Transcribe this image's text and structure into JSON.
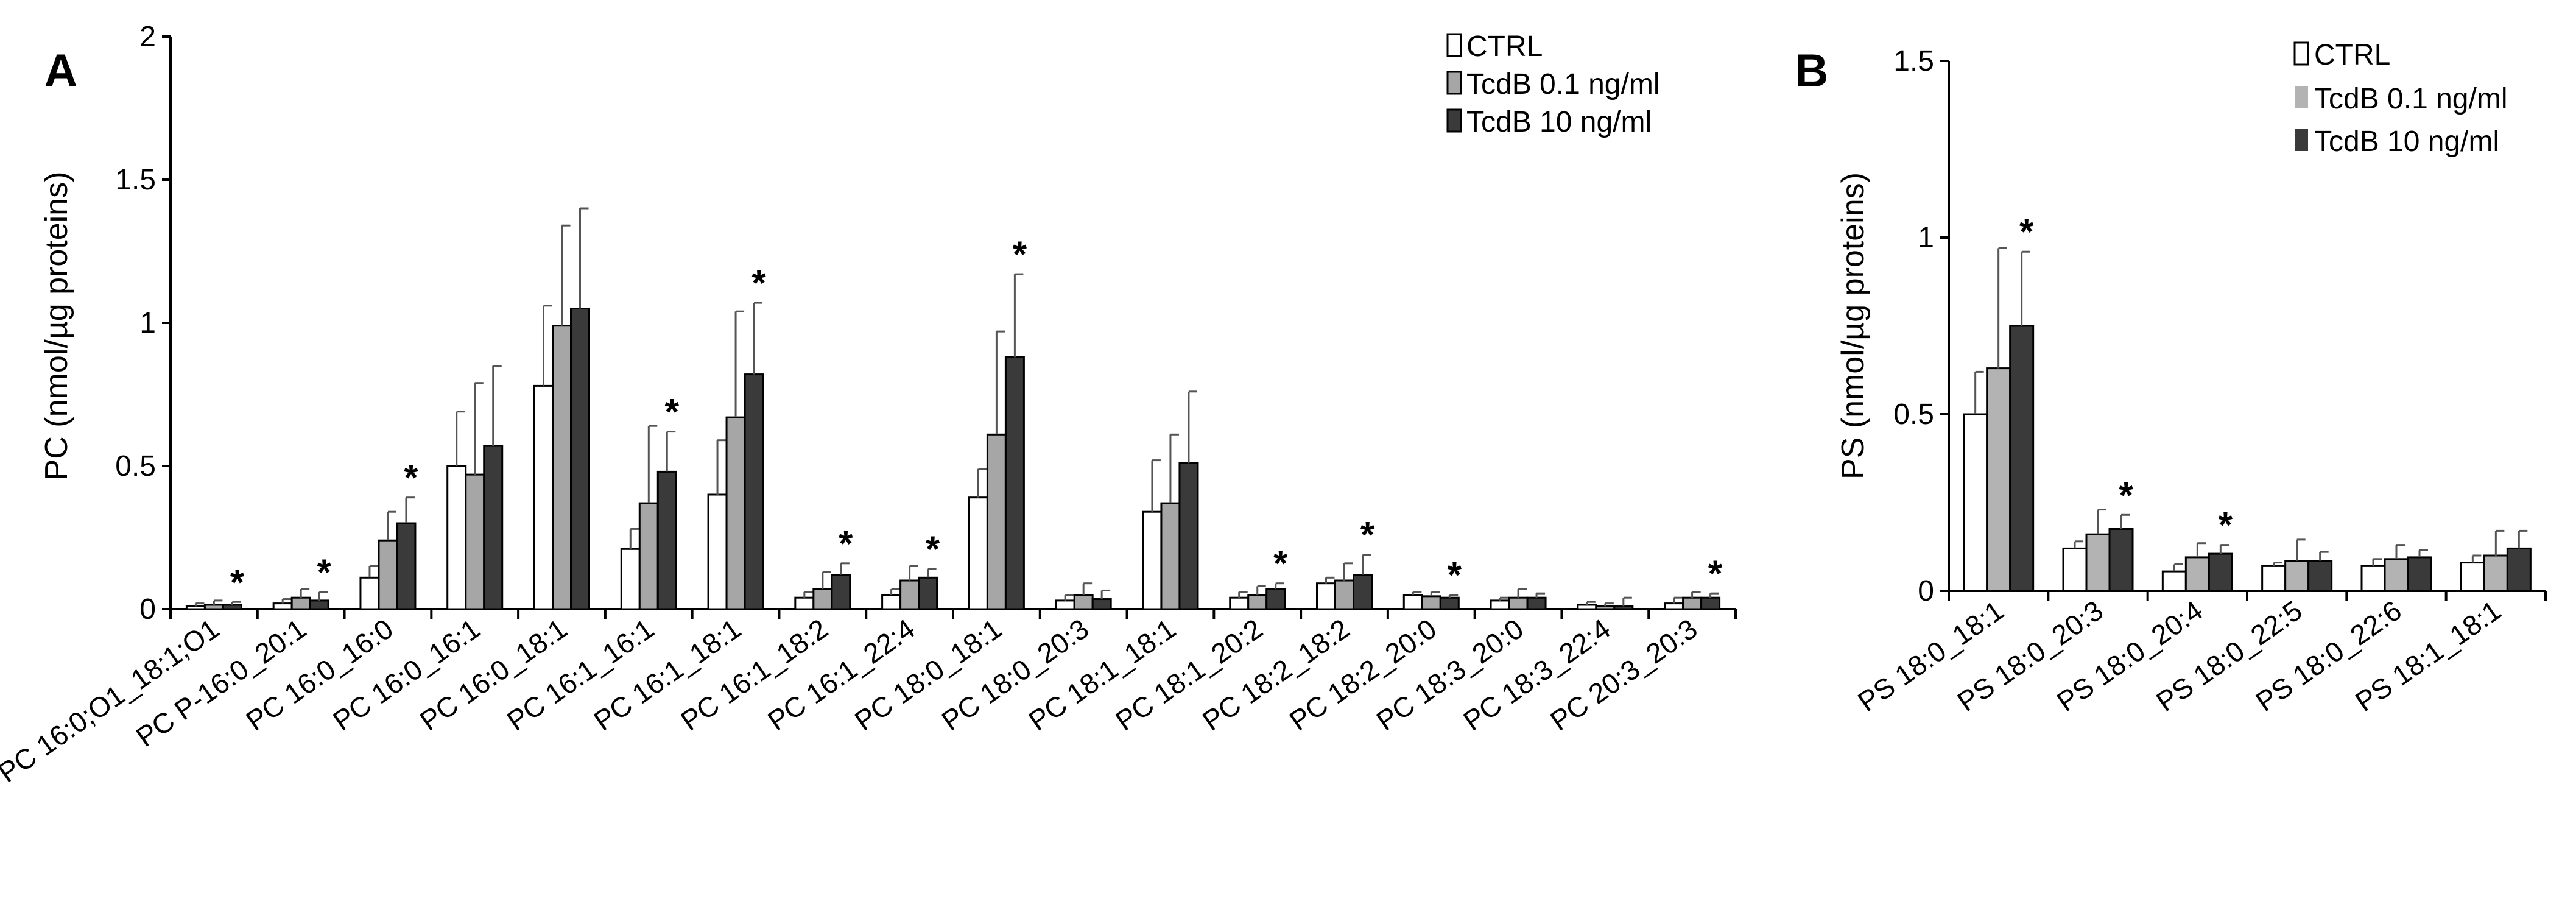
{
  "colors": {
    "ctrl": "#ffffff",
    "tcdb_low_A": "#a6a6a6",
    "tcdb_low_B": "#b3b3b3",
    "tcdb_high": "#3a3a3a",
    "stroke": "#000000"
  },
  "chart_data": [
    {
      "panel": "A",
      "type": "bar",
      "ylabel": "PC (nmol/µg proteins)",
      "ylim": [
        0,
        2
      ],
      "yticks": [
        "0",
        "0.5",
        "1",
        "1.5",
        "2"
      ],
      "legend_position": "top-right",
      "categories": [
        "PC 16:0;O1_18:1;O1",
        "PC P-16:0_20:1",
        "PC 16:0_16:0",
        "PC 16:0_16:1",
        "PC 16:0_18:1",
        "PC 16:1_16:1",
        "PC 16:1_18:1",
        "PC 16:1_18:2",
        "PC 16:1_22:4",
        "PC 18:0_18:1",
        "PC 18:0_20:3",
        "PC 18:1_18:1",
        "PC 18:1_20:2",
        "PC 18:2_18:2",
        "PC 18:2_20:0",
        "PC 18:3_20:0",
        "PC 18:3_22:4",
        "PC 20:3_20:3"
      ],
      "series": [
        {
          "name": "CTRL",
          "values": [
            0.01,
            0.02,
            0.11,
            0.5,
            0.78,
            0.21,
            0.4,
            0.04,
            0.05,
            0.39,
            0.03,
            0.34,
            0.04,
            0.09,
            0.05,
            0.03,
            0.015,
            0.02
          ],
          "errors": [
            0.01,
            0.015,
            0.04,
            0.19,
            0.28,
            0.07,
            0.19,
            0.02,
            0.02,
            0.1,
            0.02,
            0.18,
            0.02,
            0.02,
            0.01,
            0.01,
            0.01,
            0.02
          ]
        },
        {
          "name": "TcdB 0.1 ng/ml",
          "values": [
            0.015,
            0.04,
            0.24,
            0.47,
            0.99,
            0.37,
            0.67,
            0.07,
            0.1,
            0.61,
            0.05,
            0.37,
            0.05,
            0.1,
            0.045,
            0.04,
            0.01,
            0.04
          ],
          "errors": [
            0.015,
            0.03,
            0.1,
            0.32,
            0.35,
            0.27,
            0.37,
            0.06,
            0.05,
            0.36,
            0.04,
            0.24,
            0.03,
            0.06,
            0.015,
            0.03,
            0.01,
            0.02
          ]
        },
        {
          "name": "TcdB 10 ng/ml",
          "values": [
            0.015,
            0.03,
            0.3,
            0.57,
            1.05,
            0.48,
            0.82,
            0.12,
            0.11,
            0.88,
            0.035,
            0.51,
            0.07,
            0.12,
            0.04,
            0.04,
            0.01,
            0.04
          ],
          "errors": [
            0.01,
            0.03,
            0.09,
            0.28,
            0.35,
            0.14,
            0.25,
            0.04,
            0.03,
            0.29,
            0.03,
            0.25,
            0.02,
            0.07,
            0.01,
            0.015,
            0.03,
            0.015
          ]
        }
      ],
      "significance": [
        "*",
        "*",
        "*",
        "",
        "",
        "*",
        "*",
        "*",
        "*",
        "*",
        "",
        "",
        "*",
        "*",
        "*",
        "",
        "",
        "*"
      ]
    },
    {
      "panel": "B",
      "type": "bar",
      "ylabel": "PS (nmol/µg proteins)",
      "ylim": [
        0,
        1.5
      ],
      "yticks": [
        "0",
        "0.5",
        "1",
        "1.5"
      ],
      "legend_position": "top-right",
      "categories": [
        "PS 18:0_18:1",
        "PS 18:0_20:3",
        "PS 18:0_20:4",
        "PS 18:0_22:5",
        "PS 18:0_22:6",
        "PS 18:1_18:1"
      ],
      "series": [
        {
          "name": "CTRL",
          "values": [
            0.5,
            0.12,
            0.055,
            0.07,
            0.07,
            0.08
          ],
          "errors": [
            0.12,
            0.02,
            0.02,
            0.01,
            0.02,
            0.02
          ]
        },
        {
          "name": "TcdB 0.1 ng/ml",
          "values": [
            0.63,
            0.16,
            0.095,
            0.085,
            0.09,
            0.1
          ],
          "errors": [
            0.34,
            0.07,
            0.04,
            0.06,
            0.04,
            0.07
          ]
        },
        {
          "name": "TcdB 10 ng/ml",
          "values": [
            0.75,
            0.175,
            0.105,
            0.085,
            0.095,
            0.12
          ],
          "errors": [
            0.21,
            0.04,
            0.025,
            0.025,
            0.02,
            0.05
          ]
        }
      ],
      "significance": [
        "*",
        "*",
        "*",
        "",
        "",
        ""
      ]
    }
  ]
}
